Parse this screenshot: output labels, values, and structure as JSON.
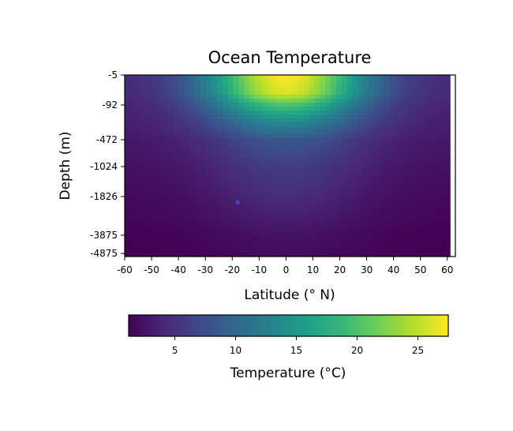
{
  "chart_data": {
    "type": "heatmap",
    "title": "Ocean Temperature",
    "xlabel": "Latitude (° N)",
    "ylabel": "Depth (m)",
    "x_ticks": [
      -60,
      -50,
      -40,
      -30,
      -20,
      -10,
      0,
      10,
      20,
      30,
      40,
      50,
      60
    ],
    "x_tick_labels": [
      "-60",
      "-50",
      "-40",
      "-30",
      "-20",
      "-10",
      "0",
      "10",
      "20",
      "30",
      "40",
      "50",
      "60"
    ],
    "xlim": [
      -60,
      63
    ],
    "y_ticks": [
      5,
      92,
      472,
      1024,
      1826,
      3875,
      4875
    ],
    "y_tick_labels": [
      "-5",
      "-92",
      "-472",
      "-1024",
      "-1826",
      "-3875",
      "-4875"
    ],
    "y_scale": "symlog",
    "ylim": [
      5,
      5500
    ],
    "data_x_extent": [
      -60,
      61
    ],
    "colorbar": {
      "label": "Temperature (°C)",
      "ticks": [
        5,
        10,
        15,
        20,
        25
      ],
      "tick_labels": [
        "5",
        "10",
        "15",
        "20",
        "25"
      ],
      "range": [
        1.2,
        27.5
      ],
      "colormap": "viridis",
      "orientation": "horizontal",
      "placement": "bottom"
    },
    "depth_profile": [
      {
        "depth": 5,
        "equator_temp": 27.5,
        "pole_temp": 4.0
      },
      {
        "depth": 30,
        "equator_temp": 26.0,
        "pole_temp": 3.8
      },
      {
        "depth": 92,
        "equator_temp": 20.0,
        "pole_temp": 3.5
      },
      {
        "depth": 200,
        "equator_temp": 14.0,
        "pole_temp": 3.2
      },
      {
        "depth": 472,
        "equator_temp": 8.5,
        "pole_temp": 2.8
      },
      {
        "depth": 1024,
        "equator_temp": 6.0,
        "pole_temp": 2.3
      },
      {
        "depth": 1826,
        "equator_temp": 4.5,
        "pole_temp": 1.8
      },
      {
        "depth": 3875,
        "equator_temp": 2.5,
        "pole_temp": 1.3
      },
      {
        "depth": 4875,
        "equator_temp": 2.0,
        "pole_temp": 1.2
      }
    ],
    "markers": [
      {
        "latitude": -18,
        "depth": 2050,
        "color": "#3b4cc0"
      }
    ],
    "grid": false,
    "legend": "none"
  }
}
